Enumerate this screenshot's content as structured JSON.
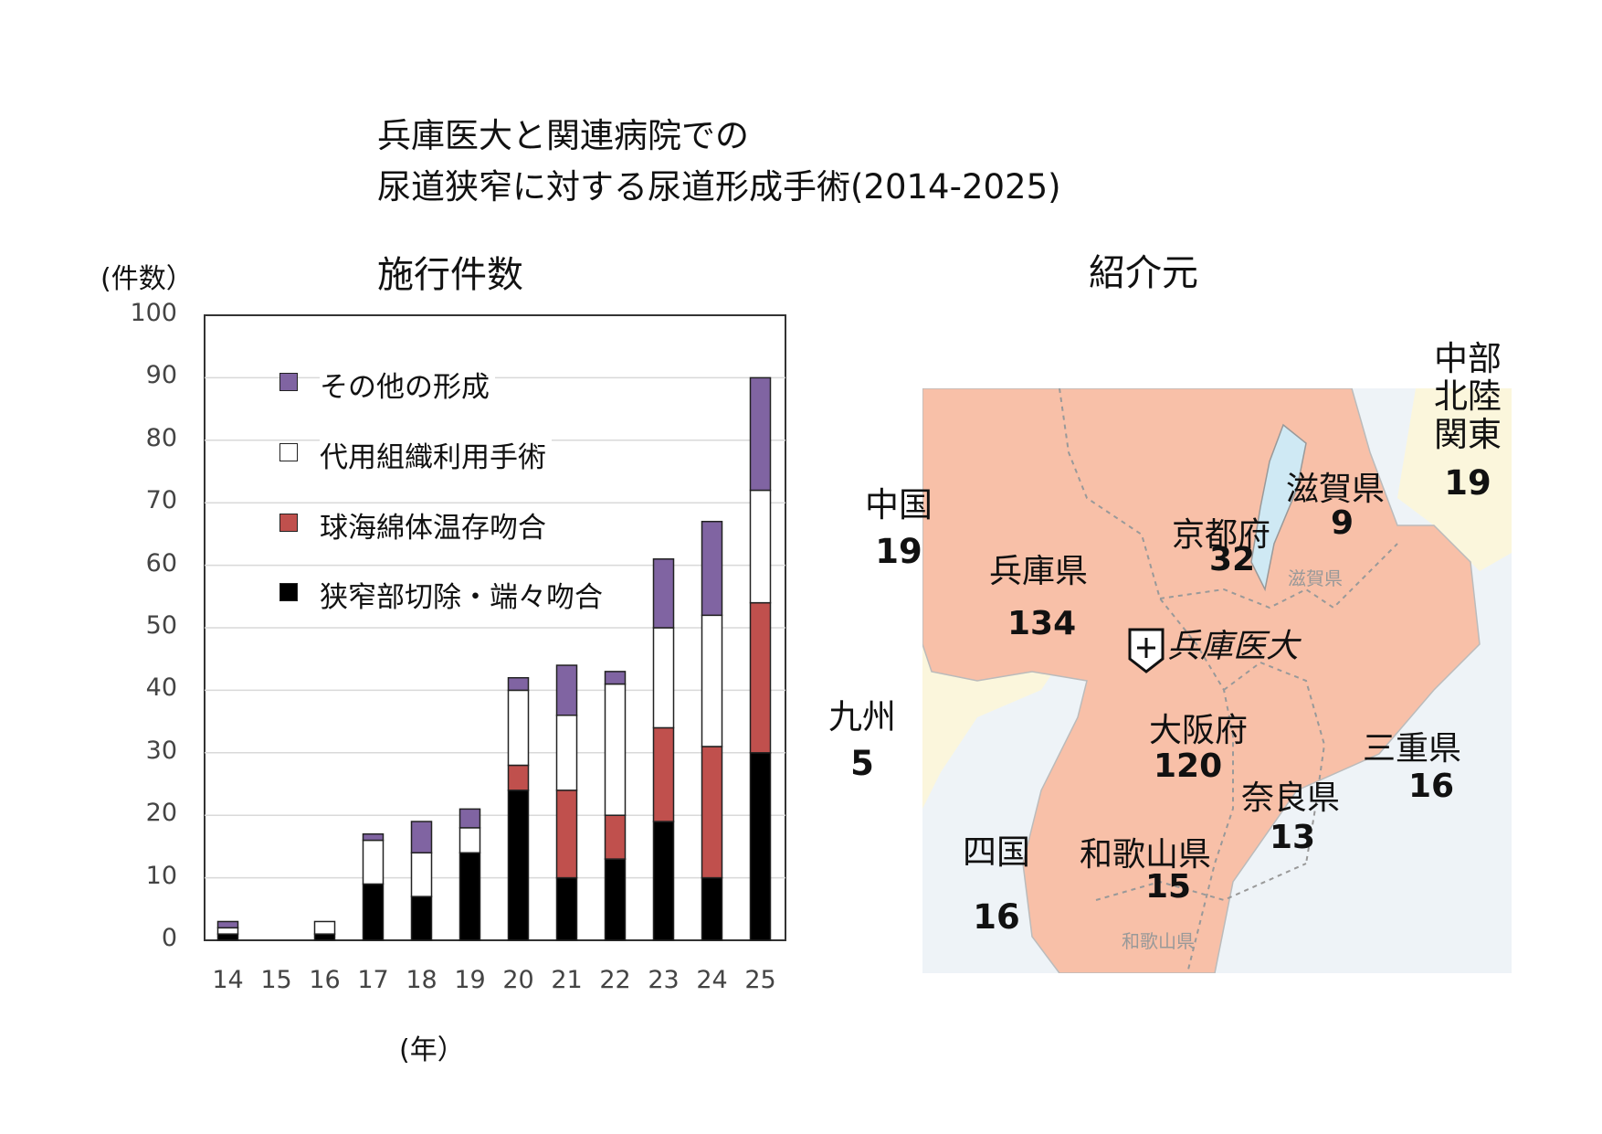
{
  "title_line1": "兵庫医大と関連病院での",
  "title_line2": "尿道狭窄に対する尿道形成手術(2014-2025)",
  "colors": {
    "other": "#8064a2",
    "graft": "#ffffff",
    "bulbar": "#c0504d",
    "excision": "#000000",
    "map_fill": "#f8c0a8",
    "map_land": "#fbf6dc"
  },
  "chart_data": {
    "type": "bar",
    "stacked": true,
    "title": "施行件数",
    "ylabel": "(件数）",
    "xlabel": "(年）",
    "ylim": [
      0,
      100
    ],
    "yticks": [
      "0",
      "10",
      "20",
      "30",
      "40",
      "50",
      "60",
      "70",
      "80",
      "90",
      "100"
    ],
    "grid": true,
    "legend_position": "top-left",
    "categories": [
      "14",
      "15",
      "16",
      "17",
      "18",
      "19",
      "20",
      "21",
      "22",
      "23",
      "24",
      "25"
    ],
    "series": [
      {
        "name": "狭窄部切除・端々吻合",
        "color": "#000000",
        "values": [
          1,
          0,
          1,
          9,
          7,
          14,
          24,
          10,
          13,
          19,
          10,
          30
        ]
      },
      {
        "name": "球海綿体温存吻合",
        "color": "#c0504d",
        "values": [
          0,
          0,
          0,
          0,
          0,
          0,
          4,
          14,
          7,
          15,
          21,
          24
        ]
      },
      {
        "name": "代用組織利用手術",
        "color": "#ffffff",
        "values": [
          1,
          0,
          2,
          7,
          7,
          4,
          12,
          12,
          21,
          16,
          21,
          18
        ]
      },
      {
        "name": "その他の形成",
        "color": "#8064a2",
        "values": [
          1,
          0,
          0,
          1,
          5,
          3,
          2,
          8,
          2,
          11,
          15,
          18
        ]
      }
    ]
  },
  "referral": {
    "title": "紹介元",
    "hospital_label": "兵庫医大",
    "regions": [
      {
        "name": "中部\n北陸\n関東",
        "count": "19"
      },
      {
        "name": "中国",
        "count": "19"
      },
      {
        "name": "九州",
        "count": "5"
      },
      {
        "name": "四国",
        "count": "16"
      }
    ],
    "prefectures": [
      {
        "name": "滋賀県",
        "count": "9"
      },
      {
        "name": "京都府",
        "count": "32"
      },
      {
        "name": "兵庫県",
        "count": "134"
      },
      {
        "name": "大阪府",
        "count": "120"
      },
      {
        "name": "三重県",
        "count": "16"
      },
      {
        "name": "奈良県",
        "count": "13"
      },
      {
        "name": "和歌山県",
        "count": "15"
      }
    ],
    "map_faint_labels": [
      "滋賀県",
      "和歌山県"
    ]
  }
}
